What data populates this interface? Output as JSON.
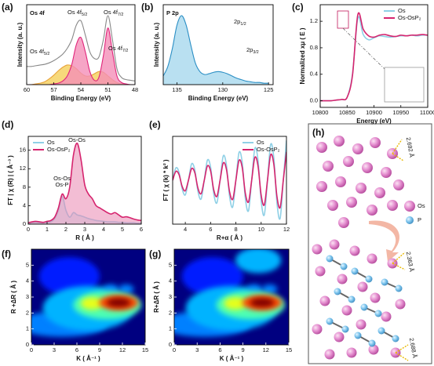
{
  "chart_data": [
    {
      "type": "area",
      "panel": "(a)",
      "title": "Os 4f",
      "title_color": "#e0247a",
      "xlabel": "Binding Energy (eV)",
      "ylabel": "Intensity (a. u.)",
      "x": [
        60,
        59.5,
        59,
        58.5,
        58,
        57.5,
        57,
        56.5,
        56,
        55.5,
        55,
        54.5,
        54,
        53.5,
        53,
        52.5,
        52,
        51.5,
        51,
        50.5,
        50,
        49.5,
        49,
        48.5,
        48
      ],
      "series": [
        {
          "color": "#e8a33b",
          "fill": "#f5cf5a",
          "values": [
            0,
            0,
            0.01,
            0.02,
            0.04,
            0.08,
            0.13,
            0.19,
            0.24,
            0.27,
            0.26,
            0.22,
            0.16,
            0.12,
            0.12,
            0.15,
            0.18,
            0.17,
            0.12,
            0.07,
            0.03,
            0.01,
            0,
            0,
            0
          ]
        },
        {
          "color": "#e0247a",
          "fill": "#f48fb8",
          "values": [
            0,
            0,
            0,
            0,
            0,
            0,
            0.01,
            0.02,
            0.05,
            0.12,
            0.28,
            0.55,
            0.65,
            0.45,
            0.18,
            0.06,
            0.1,
            0.4,
            0.78,
            0.45,
            0.12,
            0.03,
            0.01,
            0,
            0
          ]
        },
        {
          "color": "#888888",
          "values": [
            0.25,
            0.25,
            0.26,
            0.27,
            0.28,
            0.3,
            0.33,
            0.37,
            0.42,
            0.5,
            0.62,
            0.82,
            0.88,
            0.68,
            0.45,
            0.36,
            0.38,
            0.62,
            0.95,
            0.62,
            0.22,
            0.1,
            0.07,
            0.06,
            0.05
          ]
        }
      ],
      "annotations": [
        {
          "text": "Os 4f",
          "sub": "5/2"
        },
        {
          "text": "Os 4f",
          "sub": "5/2"
        },
        {
          "text": "Os 4f",
          "sub": "7/2"
        },
        {
          "text": "Os 4f",
          "sub": "7/2"
        }
      ],
      "xlim": [
        60,
        48
      ],
      "xticks": [
        60,
        57,
        54,
        51,
        48
      ],
      "ylim": [
        0,
        1.1
      ]
    },
    {
      "type": "area",
      "panel": "(b)",
      "title": "P 2p",
      "title_color": "#8fd0e6",
      "xlabel": "Binding Energy (eV)",
      "ylabel": "Intensity (a. u.)",
      "x": [
        136.5,
        136,
        135.5,
        135,
        134.5,
        134,
        133.5,
        133,
        132.5,
        132,
        131.5,
        131,
        130.5,
        130,
        129.5,
        129,
        128.5,
        128,
        127.5,
        127,
        126.5,
        126,
        125.5,
        125
      ],
      "series": [
        {
          "color": "#2a8ec4",
          "fill": "#a8d8ee",
          "values": [
            0.12,
            0.25,
            0.5,
            0.82,
            0.95,
            0.82,
            0.55,
            0.3,
            0.18,
            0.14,
            0.15,
            0.17,
            0.18,
            0.17,
            0.15,
            0.12,
            0.09,
            0.07,
            0.05,
            0.04,
            0.03,
            0.03,
            0.02,
            0.02
          ]
        }
      ],
      "annotations": [
        {
          "text": "2p",
          "sub": "1/2"
        },
        {
          "text": "2p",
          "sub": "3/2"
        }
      ],
      "xlim": [
        136.5,
        124.5
      ],
      "xticks": [
        135,
        130,
        125
      ],
      "ylim": [
        0,
        1.1
      ]
    },
    {
      "type": "line",
      "panel": "(c)",
      "xlabel": "Energy (eV)",
      "ylabel": "Normalized xμ ( E )",
      "x": [
        10800,
        10810,
        10820,
        10830,
        10840,
        10850,
        10860,
        10870,
        10880,
        10890,
        10900,
        10910,
        10920,
        10930,
        10940,
        10950,
        10960,
        10970,
        10980,
        10990,
        11000
      ],
      "series": [
        {
          "name": "Os",
          "color": "#8fd0e6",
          "values": [
            0,
            0,
            0,
            0.01,
            0.02,
            0.05,
            0.4,
            1.25,
            1.0,
            0.92,
            0.95,
            0.98,
            0.97,
            0.96,
            0.97,
            0.98,
            0.98,
            0.99,
            0.98,
            0.99,
            0.99
          ]
        },
        {
          "name": "Os-OsP₂",
          "color": "#d6246e",
          "values": [
            0,
            0,
            0,
            0.01,
            0.02,
            0.05,
            0.38,
            1.3,
            1.08,
            0.98,
            0.96,
            0.99,
            1.0,
            0.98,
            0.97,
            0.99,
            0.98,
            0.99,
            0.99,
            1.0,
            0.99
          ]
        }
      ],
      "xlim": [
        10800,
        11000
      ],
      "xticks": [
        10800,
        10850,
        10900,
        10950,
        11000
      ],
      "ylim": [
        -0.1,
        1.45
      ],
      "yticks": [
        {
          "value": 0,
          "label": "0.0"
        },
        0.4,
        0.8,
        1.2
      ],
      "legend": "upper right"
    },
    {
      "type": "line",
      "panel": "(d)",
      "xlabel": "R ( Å )",
      "ylabel": "FT | χ (R) | ( Å⁻³ )",
      "x": [
        0,
        0.2,
        0.4,
        0.6,
        0.8,
        1,
        1.2,
        1.4,
        1.6,
        1.8,
        2,
        2.2,
        2.4,
        2.6,
        2.8,
        3,
        3.2,
        3.4,
        3.6,
        3.8,
        4,
        4.2,
        4.4,
        4.6,
        4.8,
        5,
        5.2,
        5.4,
        5.6,
        5.8,
        6
      ],
      "series": [
        {
          "name": "Os",
          "color": "#8fd0e6",
          "fill": "#bfe6f2",
          "values": [
            0.2,
            0.3,
            0.4,
            0.3,
            0.3,
            0.4,
            0.5,
            1.2,
            3,
            6,
            3,
            1.5,
            2.5,
            2,
            1.8,
            1.5,
            1.2,
            1.0,
            0.8,
            0.7,
            0.6,
            0.5,
            0.5,
            0.5,
            0.4,
            0.4,
            0.3,
            0.3,
            0.3,
            0.2,
            0.2
          ]
        },
        {
          "name": "Os-OsP₂",
          "color": "#d6246e",
          "fill": "#e987b0",
          "values": [
            0.3,
            0.5,
            0.6,
            0.5,
            0.4,
            0.6,
            0.8,
            1.5,
            3.5,
            6.5,
            5.5,
            8,
            15,
            17.5,
            14,
            8.5,
            6.5,
            5.5,
            4,
            3.5,
            3,
            2.5,
            2.2,
            2.5,
            2,
            1.5,
            1.6,
            1.4,
            1.1,
            0.9,
            0.8
          ]
        }
      ],
      "annotations": [
        {
          "text": "Os-Os"
        },
        {
          "text": "Os-Os"
        },
        {
          "text": "Os-P"
        }
      ],
      "xlim": [
        0,
        6
      ],
      "xticks": [
        0,
        1,
        2,
        3,
        4,
        5,
        6
      ],
      "ylim": [
        0,
        19
      ],
      "yticks": [
        0,
        4,
        8,
        12,
        16
      ],
      "legend": "upper left"
    },
    {
      "type": "line",
      "panel": "(e)",
      "xlabel": "R+α ( Å )",
      "ylabel": "FT ( χ (k) * k² )",
      "x": [
        3,
        3.25,
        3.5,
        3.75,
        4,
        4.25,
        4.5,
        4.75,
        5,
        5.25,
        5.5,
        5.75,
        6,
        6.25,
        6.5,
        6.75,
        7,
        7.25,
        7.5,
        7.75,
        8,
        8.25,
        8.5,
        8.75,
        9,
        9.25,
        9.5,
        9.75,
        10,
        10.25,
        10.5,
        10.75,
        11,
        11.25,
        11.5,
        11.75,
        12
      ],
      "series": [
        {
          "name": "Os",
          "color": "#8fd0e6",
          "values": [
            0,
            0.42,
            0.28,
            -0.29,
            -0.5,
            0,
            0.56,
            0.36,
            -0.38,
            -0.64,
            0,
            0.69,
            0.45,
            -0.46,
            -0.77,
            0,
            0.83,
            0.53,
            -0.55,
            -0.91,
            0,
            0.95,
            0.62,
            -0.63,
            -1.04,
            0,
            1.09,
            0.69,
            -0.71,
            -1.18,
            0,
            1.22,
            0.77,
            -0.78,
            -1.3,
            0,
            1.36
          ]
        },
        {
          "name": "Os-OsP₂",
          "color": "#d6246e",
          "values": [
            0,
            0.3,
            0.2,
            -0.21,
            -0.36,
            0,
            0.4,
            0.26,
            -0.27,
            -0.46,
            0,
            0.49,
            0.32,
            -0.33,
            -0.55,
            0,
            0.59,
            0.38,
            -0.39,
            -0.65,
            0,
            0.68,
            0.44,
            -0.45,
            -0.74,
            0,
            0.78,
            0.49,
            -0.51,
            -0.84,
            0,
            0.87,
            0.55,
            -0.56,
            -0.93,
            0,
            0.97
          ]
        }
      ],
      "xlim": [
        3,
        12
      ],
      "xticks": [
        4,
        6,
        8,
        10,
        12
      ],
      "ylim": [
        -1.5,
        1.5
      ],
      "legend": "upper right"
    },
    {
      "type": "heatmap",
      "panel": "(f)",
      "xlabel": "K ( Å⁻¹ )",
      "ylabel": "R +ΔR ( Å )",
      "peaks": [
        {
          "k": 5,
          "r": 4.3,
          "k_width": 4,
          "r_width": 1.2,
          "intensity": 0.15
        },
        {
          "k": 4,
          "r": 1.3,
          "k_width": 6,
          "r_width": 0.8,
          "intensity": 0.25
        },
        {
          "k": 7.5,
          "r": 2.3,
          "k_width": 6,
          "r_width": 1.4,
          "intensity": 0.3
        },
        {
          "k": 10.5,
          "r": 3.5,
          "k_width": 1,
          "r_width": 0.3,
          "intensity": 0.25
        },
        {
          "k": 12.5,
          "r": 3.5,
          "k_width": 1,
          "r_width": 0.3,
          "intensity": 0.25
        },
        {
          "k": 10,
          "r": 2.5,
          "k_width": 4.5,
          "r_width": 0.9,
          "intensity": 0.45
        },
        {
          "k": 8,
          "r": 2.6,
          "k_width": 1.5,
          "r_width": 0.4,
          "intensity": 0.6
        },
        {
          "k": 11.5,
          "r": 2.65,
          "k_width": 2.6,
          "r_width": 0.5,
          "intensity": 0.8
        },
        {
          "k": 11.5,
          "r": 2.65,
          "k_width": 1.6,
          "r_width": 0.28,
          "intensity": 1
        }
      ],
      "xlim": [
        0,
        15
      ],
      "xticks": [
        0,
        3,
        6,
        9,
        12,
        15
      ],
      "ylim": [
        0,
        6
      ],
      "yticks": [
        0,
        1,
        2,
        3,
        4,
        5
      ]
    },
    {
      "type": "heatmap",
      "panel": "(g)",
      "xlabel": "K ( Å⁻¹ )",
      "ylabel": "R+ΔR ( Å )",
      "peaks": [
        {
          "k": 5,
          "r": 4.3,
          "k_width": 4,
          "r_width": 1.2,
          "intensity": 0.15
        },
        {
          "k": 11,
          "r": 5.3,
          "k_width": 3,
          "r_width": 0.8,
          "intensity": 0.3
        },
        {
          "k": 4,
          "r": 1.3,
          "k_width": 6,
          "r_width": 0.8,
          "intensity": 0.25
        },
        {
          "k": 7.5,
          "r": 2.3,
          "k_width": 6,
          "r_width": 1.4,
          "intensity": 0.3
        },
        {
          "k": 10.5,
          "r": 3.5,
          "k_width": 1,
          "r_width": 0.3,
          "intensity": 0.25
        },
        {
          "k": 12.5,
          "r": 3.5,
          "k_width": 1,
          "r_width": 0.3,
          "intensity": 0.25
        },
        {
          "k": 10,
          "r": 2.5,
          "k_width": 4.5,
          "r_width": 0.9,
          "intensity": 0.45
        },
        {
          "k": 8,
          "r": 2.6,
          "k_width": 1.5,
          "r_width": 0.4,
          "intensity": 0.6
        },
        {
          "k": 11.5,
          "r": 2.65,
          "k_width": 2.6,
          "r_width": 0.5,
          "intensity": 0.8
        },
        {
          "k": 11.5,
          "r": 2.65,
          "k_width": 1.6,
          "r_width": 0.28,
          "intensity": 1
        }
      ],
      "xlim": [
        0,
        15
      ],
      "xticks": [
        0,
        3,
        6,
        9,
        12,
        15
      ],
      "ylim": [
        0,
        6
      ],
      "yticks": [
        0,
        1,
        2,
        3,
        4,
        5
      ]
    }
  ],
  "diagram": {
    "panel": "(h)",
    "distances": [
      "2.692 Å",
      "2.363 Å",
      "2.688 Å"
    ],
    "legend": [
      "Os",
      "P"
    ]
  }
}
